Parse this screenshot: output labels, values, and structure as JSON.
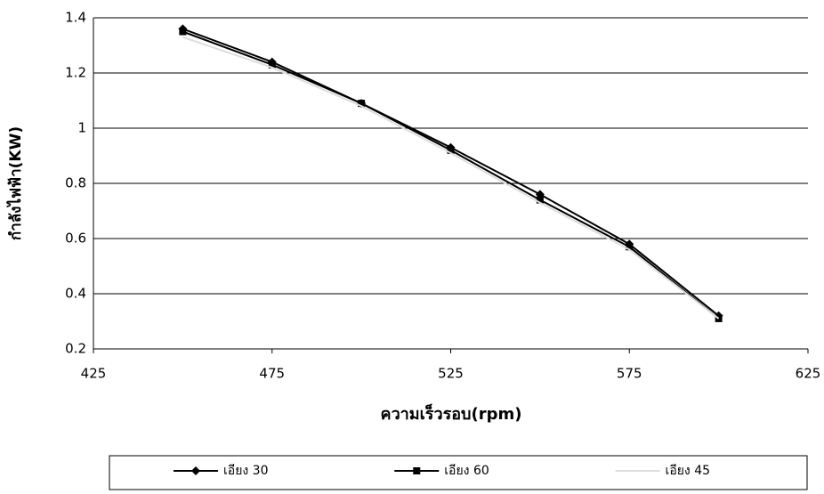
{
  "chart_data": {
    "type": "line",
    "x_label": "ความเร็วรอบ(rpm)",
    "y_label": "กำลังไฟฟ้า(KW)",
    "x": [
      450,
      475,
      500,
      525,
      550,
      575,
      600
    ],
    "series": [
      {
        "name": "เอียง 30",
        "color": "#000000",
        "marker": "diamond",
        "values": [
          1.36,
          1.24,
          1.09,
          0.93,
          0.76,
          0.58,
          0.32
        ]
      },
      {
        "name": "เอียง 60",
        "color": "#000000",
        "marker": "square",
        "values": [
          1.35,
          1.23,
          1.09,
          0.92,
          0.74,
          0.57,
          0.31
        ]
      },
      {
        "name": "เอียง 45",
        "color": "#dddddd",
        "marker": "none",
        "values": [
          1.33,
          1.22,
          1.08,
          0.91,
          0.73,
          0.56,
          0.31
        ]
      }
    ],
    "xlim": [
      425,
      625
    ],
    "xticks": [
      425,
      475,
      525,
      575,
      625
    ],
    "ylim": [
      0.2,
      1.4
    ],
    "yticks": [
      0.2,
      0.4,
      0.6,
      0.8,
      1,
      1.2,
      1.4
    ],
    "grid": true,
    "legend": "bottom"
  }
}
